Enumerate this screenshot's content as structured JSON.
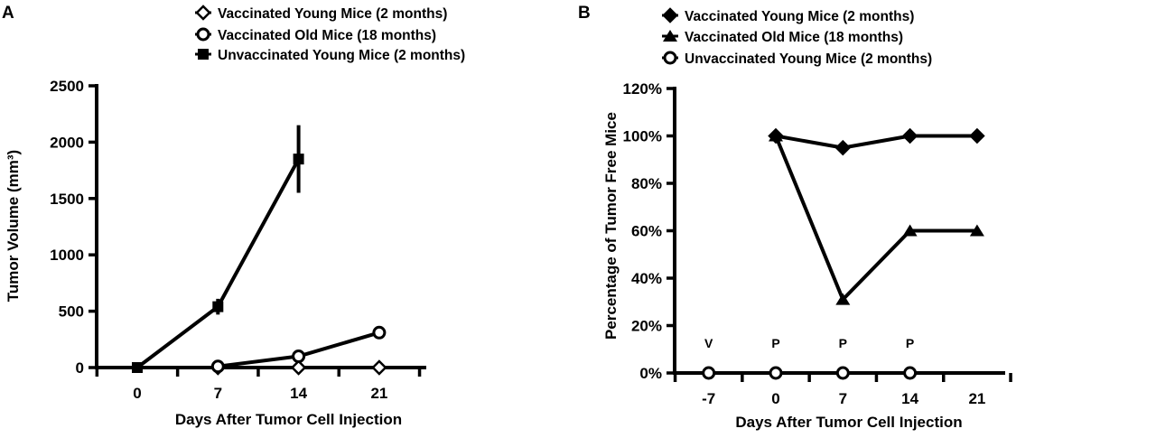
{
  "chart_data": [
    {
      "panel": "A",
      "type": "line",
      "xlabel": "Days After Tumor Cell Injection",
      "ylabel": "Tumor Volume (mm³)",
      "xticks": [
        0,
        7,
        14,
        21
      ],
      "xtick_labels": [
        "0",
        "7",
        "14",
        "21"
      ],
      "xlim": [
        -3.5,
        24.5
      ],
      "yticks": [
        0,
        500,
        1000,
        1500,
        2000,
        2500
      ],
      "ytick_labels": [
        "0",
        "500",
        "1000",
        "1500",
        "2000",
        "2500"
      ],
      "ylim": [
        0,
        2500
      ],
      "legend_position": "top",
      "series": [
        {
          "name": "Vaccinated Young Mice (2 months)",
          "marker": "diamond-open",
          "x": [
            7,
            14,
            21
          ],
          "y": [
            0,
            0,
            0
          ],
          "err": [
            0,
            0,
            0
          ]
        },
        {
          "name": "Vaccinated Old Mice (18 months)",
          "marker": "circle-open",
          "x": [
            7,
            14,
            21
          ],
          "y": [
            10,
            100,
            310
          ],
          "err": [
            0,
            0,
            0
          ]
        },
        {
          "name": "Unvaccinated Young Mice (2 months)",
          "marker": "square-filled",
          "x": [
            0,
            7,
            14
          ],
          "y": [
            0,
            540,
            1850
          ],
          "err": [
            0,
            70,
            300
          ]
        }
      ]
    },
    {
      "panel": "B",
      "type": "line",
      "xlabel": "Days After Tumor Cell Injection",
      "ylabel": "Percentage of Tumor Free Mice",
      "xticks": [
        -7,
        0,
        7,
        14,
        21
      ],
      "xtick_labels": [
        "-7",
        "0",
        "7",
        "14",
        "21"
      ],
      "xlim": [
        -10.5,
        24.5
      ],
      "yticks": [
        0,
        20,
        40,
        60,
        80,
        100,
        120
      ],
      "ytick_labels": [
        "0%",
        "20%",
        "40%",
        "60%",
        "80%",
        "100%",
        "120%"
      ],
      "ylim": [
        0,
        120
      ],
      "legend_position": "top-right",
      "annotations": [
        {
          "text": "V",
          "x": -7,
          "y": 13
        },
        {
          "text": "P",
          "x": 0,
          "y": 13
        },
        {
          "text": "P",
          "x": 7,
          "y": 13
        },
        {
          "text": "P",
          "x": 14,
          "y": 13
        }
      ],
      "series": [
        {
          "name": "Vaccinated Young Mice (2 months)",
          "marker": "diamond-filled",
          "x": [
            0,
            7,
            14,
            21
          ],
          "y": [
            100,
            95,
            100,
            100
          ]
        },
        {
          "name": "Vaccinated Old Mice (18 months)",
          "marker": "triangle-filled",
          "x": [
            0,
            7,
            14,
            21
          ],
          "y": [
            100,
            31,
            60,
            60
          ]
        },
        {
          "name": "Unvaccinated Young Mice (2 months)",
          "marker": "circle-open",
          "x": [
            -7,
            0,
            7,
            14
          ],
          "y": [
            0,
            0,
            0,
            0
          ]
        }
      ]
    }
  ]
}
